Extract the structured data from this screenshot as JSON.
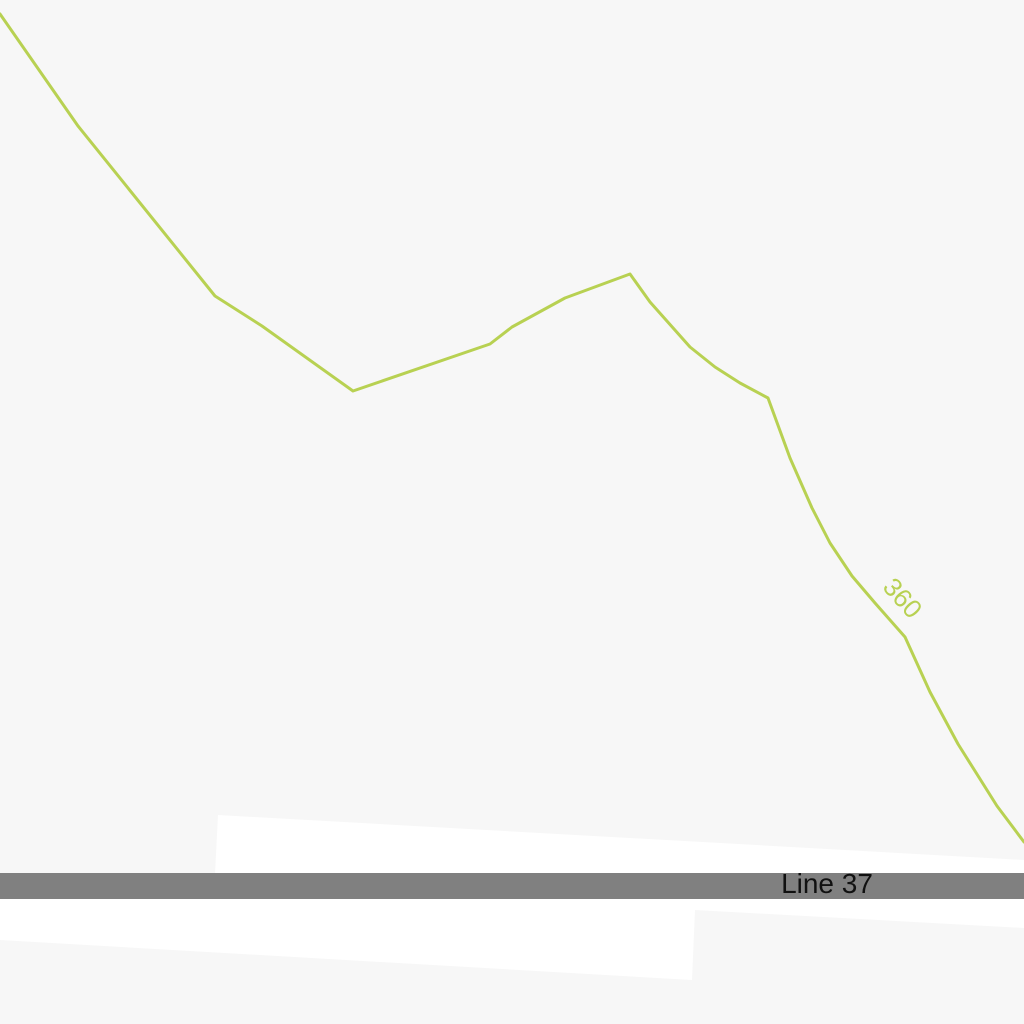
{
  "map": {
    "background_color": "#f7f7f7",
    "contour": {
      "elevation_label": "360",
      "color": "#b8d152"
    },
    "road": {
      "name": "Line 37",
      "color": "#808080",
      "label_color": "#111111"
    },
    "land_parcel": {
      "color": "#ffffff"
    }
  }
}
